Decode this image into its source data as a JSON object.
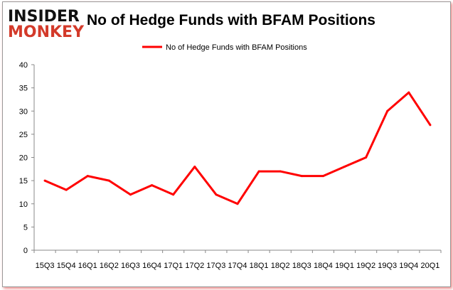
{
  "logo": {
    "line1": "INSIDER",
    "line2": "MONKEY"
  },
  "chart_data": {
    "type": "line",
    "title": "No of Hedge Funds with BFAM Positions",
    "categories": [
      "15Q3",
      "15Q4",
      "16Q1",
      "16Q2",
      "16Q3",
      "16Q4",
      "17Q1",
      "17Q2",
      "17Q3",
      "17Q4",
      "18Q1",
      "18Q2",
      "18Q3",
      "18Q4",
      "19Q1",
      "19Q2",
      "19Q3",
      "19Q4",
      "20Q1"
    ],
    "series": [
      {
        "name": "No of Hedge Funds with BFAM Positions",
        "color": "#ff0000",
        "values": [
          15,
          13,
          16,
          15,
          12,
          14,
          12,
          18,
          12,
          10,
          17,
          17,
          16,
          16,
          18,
          20,
          30,
          34,
          27
        ]
      }
    ],
    "ylim": [
      0,
      40
    ],
    "yticks": [
      0,
      5,
      10,
      15,
      20,
      25,
      30,
      35,
      40
    ],
    "grid": false,
    "legend": "top-center"
  }
}
